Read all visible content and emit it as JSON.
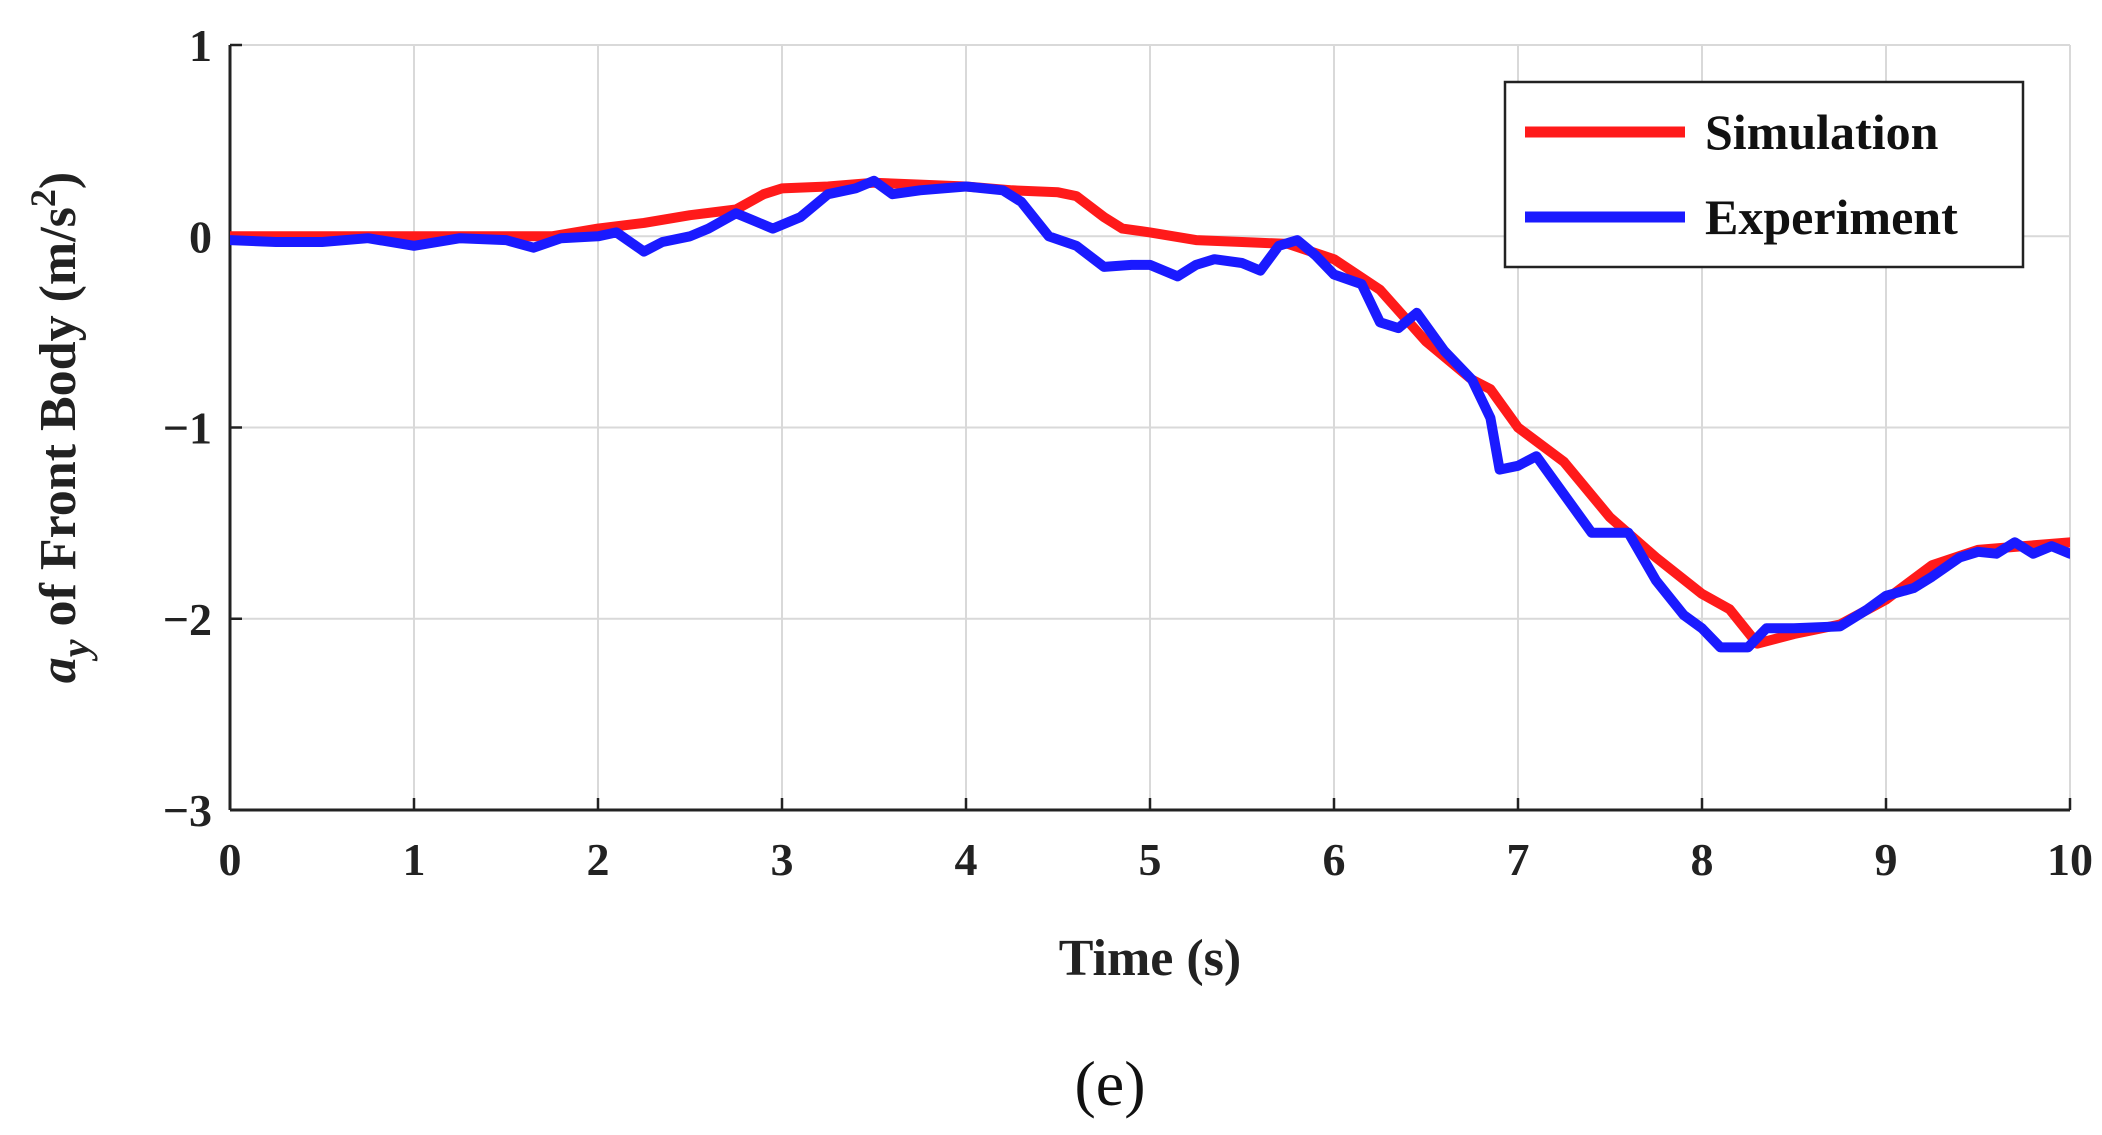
{
  "chart_data": {
    "type": "line",
    "xlabel": "Time (s)",
    "ylabel_parts": {
      "symbol": "a",
      "subscript": "y",
      "text": " of Front Body (m/s",
      "superscript": "2",
      "close": ")"
    },
    "panel_label": "(e)",
    "xlim": [
      0,
      10
    ],
    "ylim": [
      -3,
      1
    ],
    "xticks": [
      0,
      1,
      2,
      3,
      4,
      5,
      6,
      7,
      8,
      9,
      10
    ],
    "yticks": [
      1,
      0,
      -1,
      -2,
      -3
    ],
    "ytick_labels": [
      "1",
      "0",
      "−1",
      "−2",
      "−3"
    ],
    "grid": true,
    "legend_position": "top-right",
    "series": [
      {
        "name": "Simulation",
        "color": "#ff1a1a",
        "points": [
          [
            0,
            0.0
          ],
          [
            0.5,
            0.0
          ],
          [
            1.0,
            0.0
          ],
          [
            1.5,
            0.0
          ],
          [
            1.75,
            0.0
          ],
          [
            2.0,
            0.04
          ],
          [
            2.25,
            0.07
          ],
          [
            2.5,
            0.11
          ],
          [
            2.75,
            0.14
          ],
          [
            2.9,
            0.22
          ],
          [
            3.0,
            0.25
          ],
          [
            3.25,
            0.26
          ],
          [
            3.5,
            0.28
          ],
          [
            3.75,
            0.27
          ],
          [
            4.0,
            0.26
          ],
          [
            4.25,
            0.24
          ],
          [
            4.5,
            0.23
          ],
          [
            4.6,
            0.21
          ],
          [
            4.75,
            0.1
          ],
          [
            4.85,
            0.04
          ],
          [
            5.0,
            0.02
          ],
          [
            5.25,
            -0.02
          ],
          [
            5.5,
            -0.03
          ],
          [
            5.75,
            -0.04
          ],
          [
            6.0,
            -0.12
          ],
          [
            6.25,
            -0.28
          ],
          [
            6.5,
            -0.55
          ],
          [
            6.75,
            -0.75
          ],
          [
            6.85,
            -0.8
          ],
          [
            7.0,
            -1.0
          ],
          [
            7.25,
            -1.18
          ],
          [
            7.5,
            -1.47
          ],
          [
            7.75,
            -1.68
          ],
          [
            8.0,
            -1.87
          ],
          [
            8.15,
            -1.95
          ],
          [
            8.3,
            -2.13
          ],
          [
            8.5,
            -2.08
          ],
          [
            8.75,
            -2.03
          ],
          [
            9.0,
            -1.9
          ],
          [
            9.25,
            -1.72
          ],
          [
            9.5,
            -1.64
          ],
          [
            9.75,
            -1.62
          ],
          [
            10.0,
            -1.6
          ]
        ]
      },
      {
        "name": "Experiment",
        "color": "#1a1aff",
        "points": [
          [
            0,
            -0.02
          ],
          [
            0.25,
            -0.03
          ],
          [
            0.5,
            -0.03
          ],
          [
            0.75,
            -0.01
          ],
          [
            1.0,
            -0.05
          ],
          [
            1.25,
            -0.01
          ],
          [
            1.5,
            -0.02
          ],
          [
            1.65,
            -0.06
          ],
          [
            1.8,
            -0.01
          ],
          [
            2.0,
            0.0
          ],
          [
            2.1,
            0.02
          ],
          [
            2.25,
            -0.08
          ],
          [
            2.35,
            -0.03
          ],
          [
            2.5,
            0.0
          ],
          [
            2.6,
            0.04
          ],
          [
            2.75,
            0.12
          ],
          [
            2.85,
            0.08
          ],
          [
            2.95,
            0.04
          ],
          [
            3.1,
            0.1
          ],
          [
            3.25,
            0.22
          ],
          [
            3.4,
            0.25
          ],
          [
            3.5,
            0.29
          ],
          [
            3.6,
            0.22
          ],
          [
            3.75,
            0.24
          ],
          [
            4.0,
            0.26
          ],
          [
            4.2,
            0.24
          ],
          [
            4.3,
            0.18
          ],
          [
            4.45,
            0.0
          ],
          [
            4.6,
            -0.05
          ],
          [
            4.75,
            -0.16
          ],
          [
            4.9,
            -0.15
          ],
          [
            5.0,
            -0.15
          ],
          [
            5.15,
            -0.21
          ],
          [
            5.25,
            -0.15
          ],
          [
            5.35,
            -0.12
          ],
          [
            5.5,
            -0.14
          ],
          [
            5.6,
            -0.18
          ],
          [
            5.7,
            -0.05
          ],
          [
            5.8,
            -0.02
          ],
          [
            5.9,
            -0.1
          ],
          [
            6.0,
            -0.2
          ],
          [
            6.15,
            -0.25
          ],
          [
            6.25,
            -0.45
          ],
          [
            6.35,
            -0.48
          ],
          [
            6.45,
            -0.4
          ],
          [
            6.6,
            -0.6
          ],
          [
            6.75,
            -0.75
          ],
          [
            6.85,
            -0.95
          ],
          [
            6.9,
            -1.22
          ],
          [
            7.0,
            -1.2
          ],
          [
            7.1,
            -1.15
          ],
          [
            7.25,
            -1.35
          ],
          [
            7.4,
            -1.55
          ],
          [
            7.6,
            -1.55
          ],
          [
            7.75,
            -1.8
          ],
          [
            7.9,
            -1.98
          ],
          [
            8.0,
            -2.05
          ],
          [
            8.1,
            -2.15
          ],
          [
            8.25,
            -2.15
          ],
          [
            8.35,
            -2.05
          ],
          [
            8.5,
            -2.05
          ],
          [
            8.75,
            -2.04
          ],
          [
            8.9,
            -1.95
          ],
          [
            9.0,
            -1.88
          ],
          [
            9.15,
            -1.84
          ],
          [
            9.25,
            -1.78
          ],
          [
            9.4,
            -1.68
          ],
          [
            9.5,
            -1.65
          ],
          [
            9.6,
            -1.66
          ],
          [
            9.7,
            -1.6
          ],
          [
            9.8,
            -1.66
          ],
          [
            9.9,
            -1.62
          ],
          [
            10.0,
            -1.66
          ]
        ]
      }
    ]
  }
}
